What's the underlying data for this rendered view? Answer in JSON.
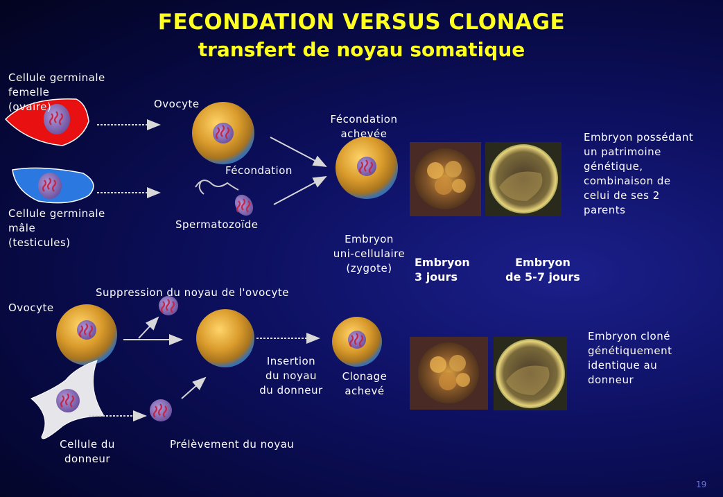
{
  "title": "FECONDATION VERSUS CLONAGE",
  "subtitle": "transfert de noyau somatique",
  "fertilization": {
    "female_cell": "Cellule germinale\nfemelle\n(ovaire)",
    "oocyte": "Ovocyte",
    "male_cell": "Cellule germinale\nmâle\n(testicules)",
    "sperm": "Spermatozoïde",
    "fecondation": "Fécondation",
    "fecondation_done": "Fécondation\nachevée",
    "zygote": "Embryon\nuni-cellulaire\n(zygote)",
    "embryo_3": "Embryon\n3 jours",
    "embryo_5_7": "Embryon\nde 5-7 jours",
    "result": "Embryon possédant\nun patrimoine\ngénétique,\ncombinaison de\ncelui de ses 2\nparents"
  },
  "cloning": {
    "oocyte": "Ovocyte",
    "suppression": "Suppression du noyau de l'ovocyte",
    "insertion": "Insertion\ndu noyau\ndu donneur",
    "clonage_done": "Clonage\nachevé",
    "donor_cell": "Cellule du\ndonneur",
    "prelevement": "Prélèvement du noyau",
    "result": "Embryon cloné\ngénétiquement\nidentique au\ndonneur"
  },
  "page_number": "19",
  "colors": {
    "title": "#ffff20",
    "label": "#ffffff",
    "background": "#0d1060"
  }
}
